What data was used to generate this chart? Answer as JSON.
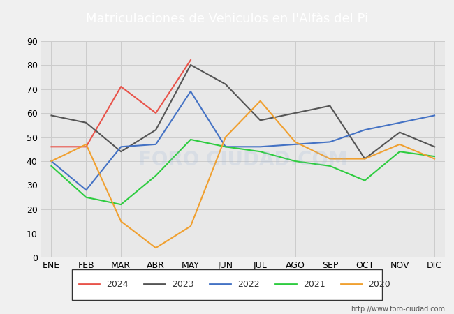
{
  "title": "Matriculaciones de Vehiculos en l'Alfàs del Pi",
  "header_bg": "#4a7ab5",
  "months": [
    "ENE",
    "FEB",
    "MAR",
    "ABR",
    "MAY",
    "JUN",
    "JUL",
    "AGO",
    "SEP",
    "OCT",
    "NOV",
    "DIC"
  ],
  "series": {
    "2024": {
      "data": [
        46,
        46,
        71,
        60,
        82,
        null,
        null,
        null,
        null,
        null,
        null,
        null
      ],
      "color": "#e8534a",
      "linewidth": 1.5
    },
    "2023": {
      "data": [
        59,
        56,
        44,
        53,
        80,
        72,
        57,
        60,
        63,
        41,
        52,
        46
      ],
      "color": "#555555",
      "linewidth": 1.5
    },
    "2022": {
      "data": [
        40,
        28,
        46,
        47,
        69,
        46,
        46,
        47,
        48,
        53,
        56,
        59
      ],
      "color": "#4472c4",
      "linewidth": 1.5
    },
    "2021": {
      "data": [
        38,
        25,
        22,
        34,
        49,
        46,
        44,
        40,
        38,
        32,
        44,
        42
      ],
      "color": "#2ecc40",
      "linewidth": 1.5
    },
    "2020": {
      "data": [
        40,
        47,
        15,
        4,
        13,
        50,
        65,
        48,
        41,
        41,
        47,
        41
      ],
      "color": "#f0a030",
      "linewidth": 1.5
    }
  },
  "ylim": [
    0,
    90
  ],
  "yticks": [
    0,
    10,
    20,
    30,
    40,
    50,
    60,
    70,
    80,
    90
  ],
  "grid_color": "#cccccc",
  "plot_bg": "#e8e8e8",
  "footer_text": "http://www.foro-ciudad.com",
  "watermark": "FORO CIUDAD.COM",
  "watermark_color": "#a0b8d8",
  "legend_order": [
    "2024",
    "2023",
    "2022",
    "2021",
    "2020"
  ]
}
